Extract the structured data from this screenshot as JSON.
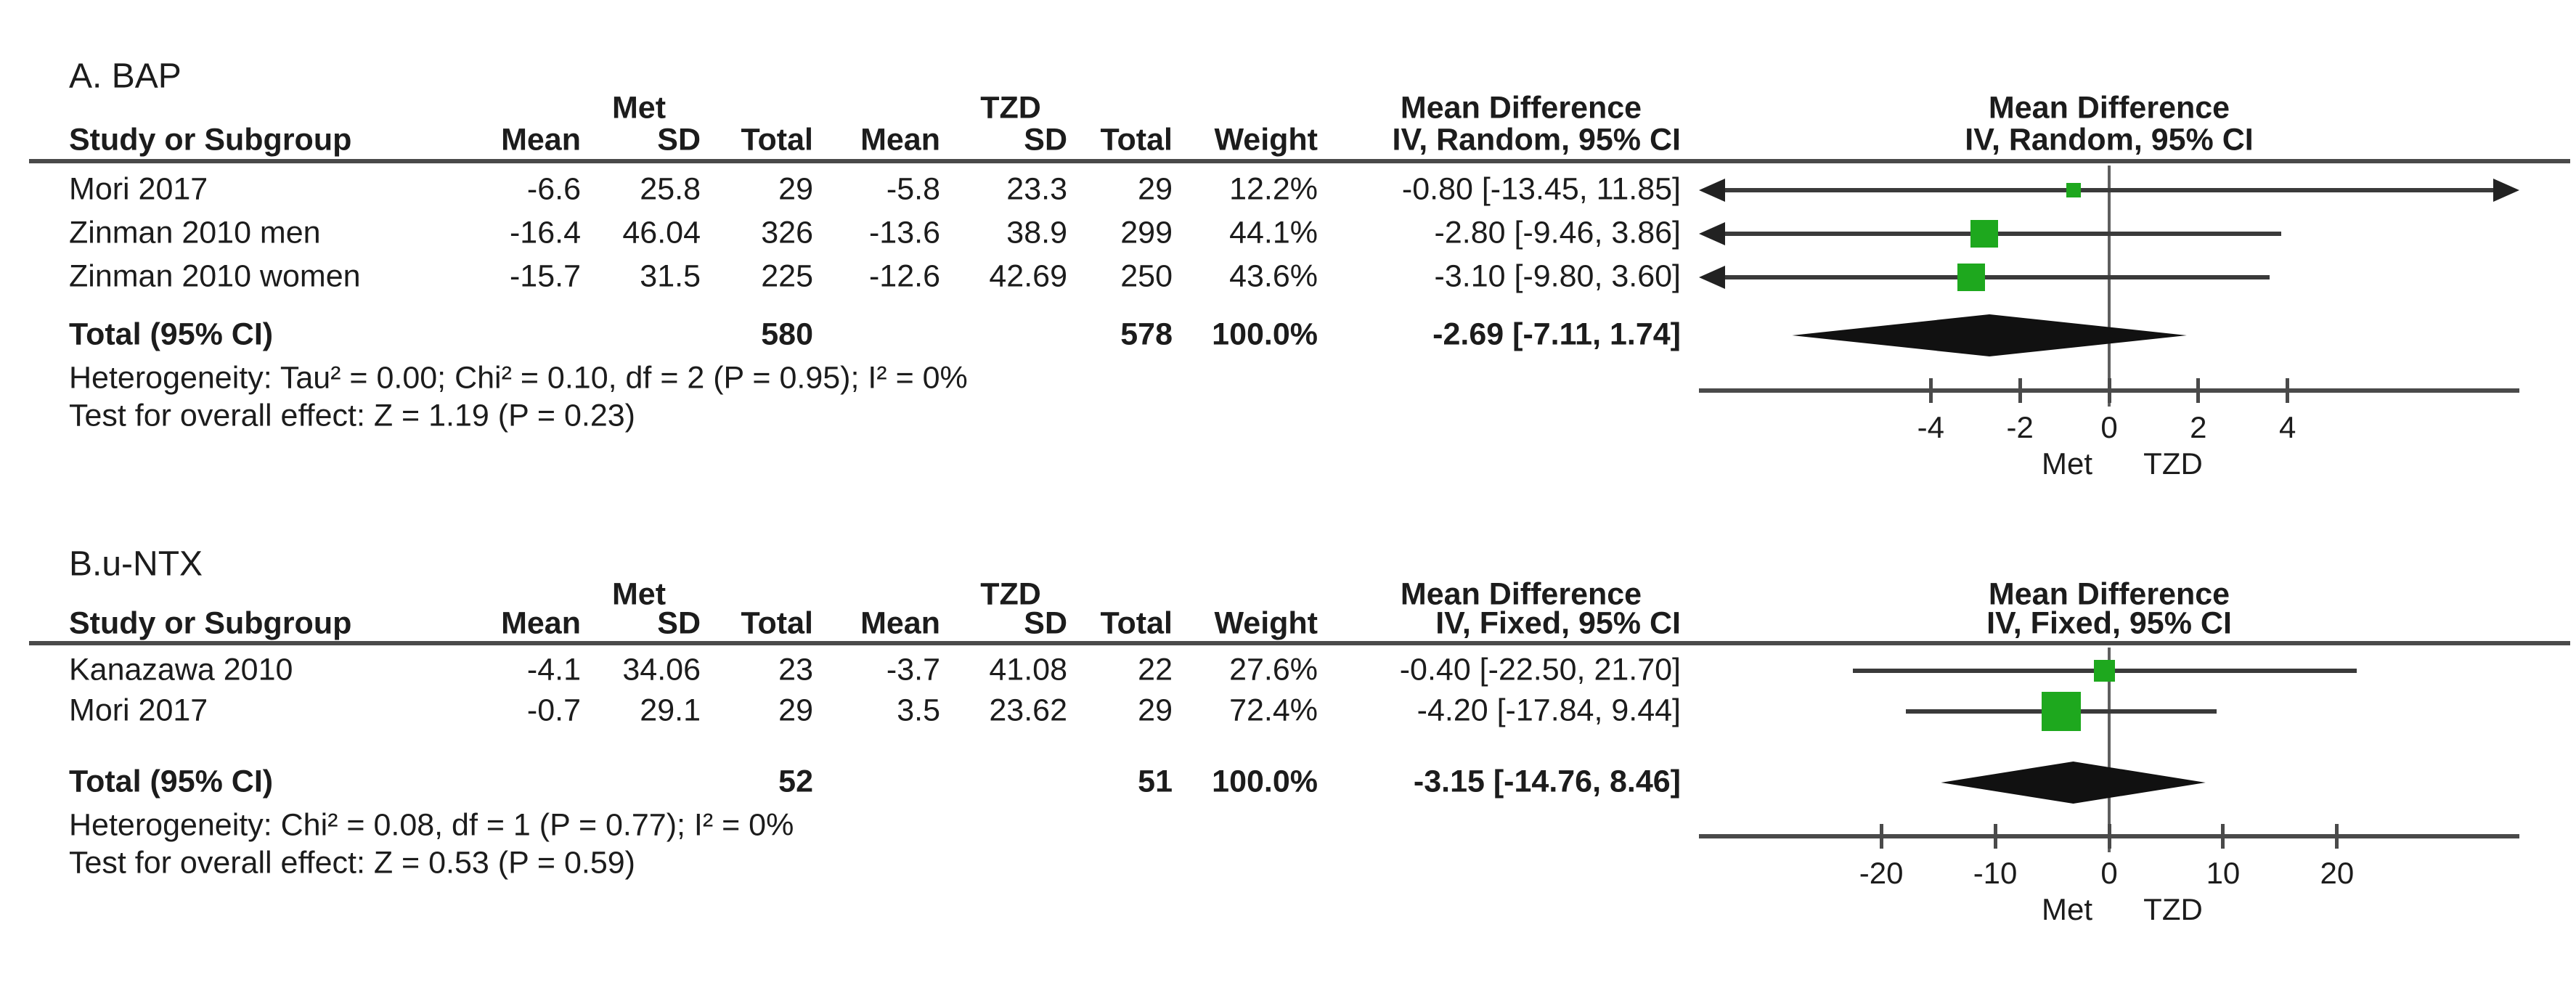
{
  "colors": {
    "square_green": "#1ea81e",
    "diamond_black": "#111111",
    "ci_line": "#3a3a3a",
    "rule": "#4a4a4a",
    "zero_line": "#5f5f5f",
    "text": "#1c1c1c",
    "arrow": "#222222"
  },
  "chart_data": [
    {
      "type": "forest",
      "title": "A. BAP",
      "effect_label": "Mean Difference",
      "model": "IV, Random, 95% CI",
      "group_labels": {
        "group1": "Met",
        "group2": "TZD"
      },
      "columns": [
        "Study or Subgroup",
        "Mean",
        "SD",
        "Total",
        "Mean",
        "SD",
        "Total",
        "Weight",
        "IV, Random, 95% CI"
      ],
      "studies": [
        {
          "name": "Mori 2017",
          "met": {
            "mean": "-6.6",
            "sd": "25.8",
            "total": "29"
          },
          "tzd": {
            "mean": "-5.8",
            "sd": "23.3",
            "total": "29"
          },
          "weight": "12.2%",
          "weight_pct": 12.2,
          "md": -0.8,
          "ci_low": -13.45,
          "ci_high": 11.85,
          "ci_text": "-0.80 [-13.45, 11.85]"
        },
        {
          "name": "Zinman 2010 men",
          "met": {
            "mean": "-16.4",
            "sd": "46.04",
            "total": "326"
          },
          "tzd": {
            "mean": "-13.6",
            "sd": "38.9",
            "total": "299"
          },
          "weight": "44.1%",
          "weight_pct": 44.1,
          "md": -2.8,
          "ci_low": -9.46,
          "ci_high": 3.86,
          "ci_text": "-2.80 [-9.46, 3.86]"
        },
        {
          "name": "Zinman 2010 women",
          "met": {
            "mean": "-15.7",
            "sd": "31.5",
            "total": "225"
          },
          "tzd": {
            "mean": "-12.6",
            "sd": "42.69",
            "total": "250"
          },
          "weight": "43.6%",
          "weight_pct": 43.6,
          "md": -3.1,
          "ci_low": -9.8,
          "ci_high": 3.6,
          "ci_text": "-3.10 [-9.80, 3.60]"
        }
      ],
      "total": {
        "label": "Total (95% CI)",
        "met_total": "580",
        "tzd_total": "578",
        "weight": "100.0%",
        "md": -2.69,
        "ci_low": -7.11,
        "ci_high": 1.74,
        "ci_text": "-2.69 [-7.11, 1.74]"
      },
      "heterogeneity": "Heterogeneity: Tau² = 0.00; Chi² = 0.10, df = 2 (P = 0.95); I² = 0%",
      "overall_effect": "Test for overall effect: Z = 1.19 (P = 0.23)",
      "axis": {
        "ticks": [
          -4,
          -2,
          0,
          2,
          4
        ],
        "xlim": [
          -9.2,
          9.2
        ],
        "favors_left": "Met",
        "favors_right": "TZD"
      }
    },
    {
      "type": "forest",
      "title": "B.u-NTX",
      "effect_label": "Mean Difference",
      "model": "IV, Fixed, 95% CI",
      "group_labels": {
        "group1": "Met",
        "group2": "TZD"
      },
      "columns": [
        "Study or Subgroup",
        "Mean",
        "SD",
        "Total",
        "Mean",
        "SD",
        "Total",
        "Weight",
        "IV, Fixed, 95% CI"
      ],
      "studies": [
        {
          "name": "Kanazawa 2010",
          "met": {
            "mean": "-4.1",
            "sd": "34.06",
            "total": "23"
          },
          "tzd": {
            "mean": "-3.7",
            "sd": "41.08",
            "total": "22"
          },
          "weight": "27.6%",
          "weight_pct": 27.6,
          "md": -0.4,
          "ci_low": -22.5,
          "ci_high": 21.7,
          "ci_text": "-0.40 [-22.50, 21.70]"
        },
        {
          "name": "Mori 2017",
          "met": {
            "mean": "-0.7",
            "sd": "29.1",
            "total": "29"
          },
          "tzd": {
            "mean": "3.5",
            "sd": "23.62",
            "total": "29"
          },
          "weight": "72.4%",
          "weight_pct": 72.4,
          "md": -4.2,
          "ci_low": -17.84,
          "ci_high": 9.44,
          "ci_text": "-4.20 [-17.84, 9.44]"
        }
      ],
      "total": {
        "label": "Total (95% CI)",
        "met_total": "52",
        "tzd_total": "51",
        "weight": "100.0%",
        "md": -3.15,
        "ci_low": -14.76,
        "ci_high": 8.46,
        "ci_text": "-3.15 [-14.76, 8.46]"
      },
      "heterogeneity": "Heterogeneity: Chi² = 0.08, df = 1 (P = 0.77); I² = 0%",
      "overall_effect": "Test for overall effect: Z = 0.53 (P = 0.59)",
      "axis": {
        "ticks": [
          -20,
          -10,
          0,
          10,
          20
        ],
        "xlim": [
          -36,
          36
        ],
        "favors_left": "Met",
        "favors_right": "TZD"
      }
    }
  ]
}
